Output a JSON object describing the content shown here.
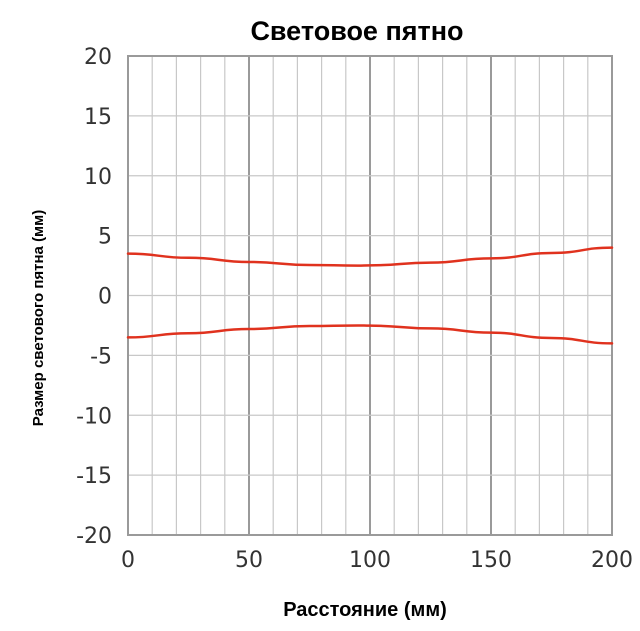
{
  "chart_data": {
    "type": "line",
    "title": "Световое пятно",
    "xlabel": "Расстояние (мм)",
    "ylabel": "Размер светового пятна (мм)",
    "xlim": [
      0,
      200
    ],
    "ylim": [
      -20,
      20
    ],
    "x_ticks": [
      "0",
      "50",
      "100",
      "150",
      "200"
    ],
    "y_ticks": [
      "20",
      "15",
      "10",
      "5",
      "0",
      "-5",
      "-10",
      "-15",
      "-20"
    ],
    "grid": true,
    "series": [
      {
        "color": "#e0321e",
        "x": [
          0,
          25,
          50,
          75,
          95,
          100,
          125,
          150,
          175,
          200
        ],
        "y": [
          3.5,
          3.15,
          2.8,
          2.55,
          2.5,
          2.52,
          2.75,
          3.1,
          3.55,
          4.0
        ]
      },
      {
        "color": "#e0321e",
        "x": [
          0,
          25,
          50,
          75,
          95,
          100,
          125,
          150,
          175,
          200
        ],
        "y": [
          -3.5,
          -3.15,
          -2.8,
          -2.55,
          -2.5,
          -2.52,
          -2.75,
          -3.1,
          -3.55,
          -4.0
        ]
      }
    ]
  }
}
